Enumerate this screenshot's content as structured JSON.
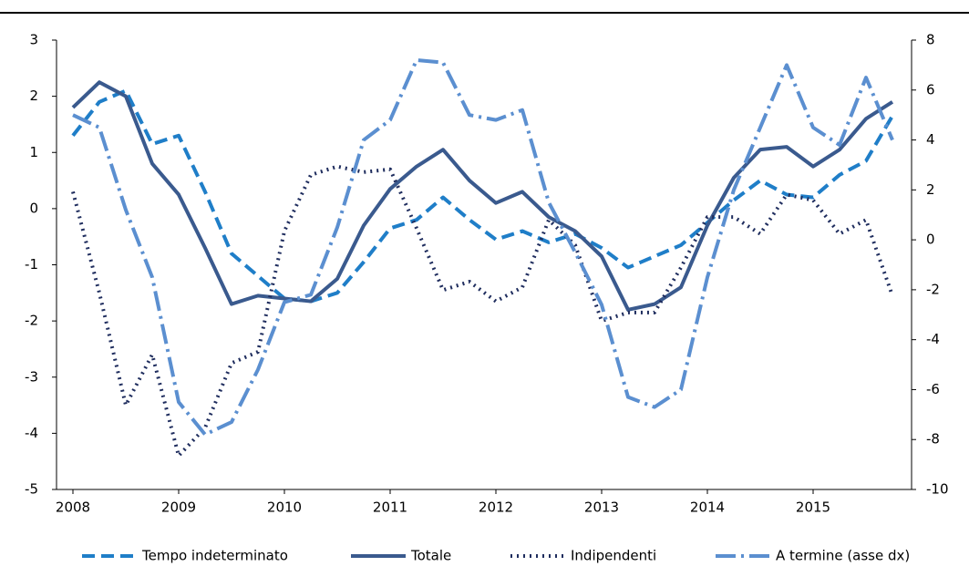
{
  "chart_data": {
    "type": "line",
    "categories": [
      "2008",
      null,
      null,
      null,
      "2009",
      null,
      null,
      null,
      "2010",
      null,
      null,
      null,
      "2011",
      null,
      null,
      null,
      "2012",
      null,
      null,
      null,
      "2013",
      null,
      null,
      null,
      "2014",
      null,
      null,
      null,
      "2015",
      null,
      null,
      null
    ],
    "ylim": [
      -5,
      3
    ],
    "yticks": [
      -5,
      -4,
      -3,
      -2,
      -1,
      0,
      1,
      2,
      3
    ],
    "y2lim": [
      -10,
      8
    ],
    "y2ticks": [
      -10,
      -8,
      -6,
      -4,
      -2,
      0,
      2,
      4,
      6,
      8
    ],
    "legend": "bottom",
    "series": [
      {
        "name": "Tempo indeterminato",
        "color": "#1f7ec8",
        "dash": "14 7",
        "values": [
          1.3,
          1.9,
          2.1,
          1.15,
          1.3,
          0.3,
          -0.8,
          -1.2,
          -1.6,
          -1.65,
          -1.5,
          -0.95,
          -0.35,
          -0.2,
          0.2,
          -0.2,
          -0.55,
          -0.4,
          -0.6,
          -0.45,
          -0.7,
          -1.05,
          -0.85,
          -0.65,
          -0.25,
          0.15,
          0.5,
          0.25,
          0.2,
          0.6,
          0.85,
          1.65
        ]
      },
      {
        "name": "Totale",
        "color": "#3a5a8e",
        "dash": "none",
        "values": [
          1.8,
          2.25,
          2.0,
          0.8,
          0.25,
          -0.7,
          -1.7,
          -1.55,
          -1.6,
          -1.65,
          -1.25,
          -0.3,
          0.35,
          0.75,
          1.05,
          0.5,
          0.1,
          0.3,
          -0.15,
          -0.4,
          -0.85,
          -1.8,
          -1.7,
          -1.4,
          -0.3,
          0.55,
          1.05,
          1.1,
          0.75,
          1.05,
          1.6,
          1.9
        ]
      },
      {
        "name": "Indipendenti",
        "color": "#1f2d5e",
        "dash": "2 5",
        "values": [
          0.3,
          -1.5,
          -3.5,
          -2.6,
          -4.4,
          -3.9,
          -2.75,
          -2.55,
          -0.4,
          0.6,
          0.75,
          0.65,
          0.7,
          -0.35,
          -1.45,
          -1.3,
          -1.65,
          -1.4,
          -0.2,
          -0.65,
          -2.0,
          -1.85,
          -1.85,
          -1.05,
          -0.15,
          -0.15,
          -0.45,
          0.25,
          0.15,
          -0.45,
          -0.2,
          -1.55
        ]
      },
      {
        "name": "A termine (asse dx)",
        "color": "#5b8fd0",
        "dash": "22 6 3 6",
        "axis": "y2",
        "values": [
          5.0,
          4.5,
          1.2,
          -1.5,
          -6.5,
          -7.8,
          -7.3,
          -5.2,
          -2.5,
          -2.2,
          0.5,
          4.0,
          4.8,
          7.2,
          7.1,
          5.0,
          4.8,
          5.2,
          1.5,
          -0.5,
          -2.6,
          -6.3,
          -6.7,
          -6.0,
          -1.5,
          2.0,
          4.5,
          7.0,
          4.5,
          3.8,
          6.5,
          4.0
        ]
      }
    ]
  }
}
